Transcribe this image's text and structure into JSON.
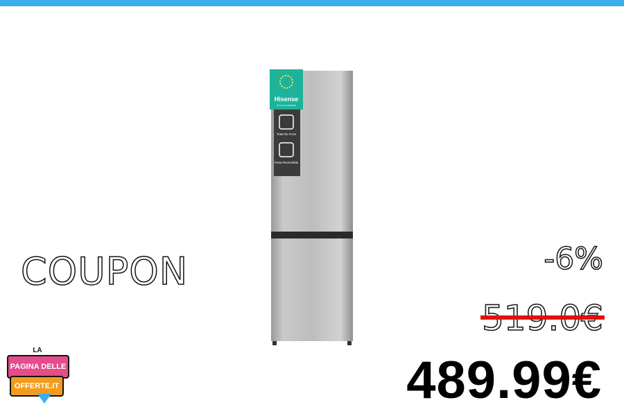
{
  "promo": {
    "coupon_label": "COUPON",
    "discount": "-6%",
    "old_price": "519.0€",
    "new_price": "489.99€"
  },
  "product": {
    "brand_badge": "Hisense",
    "badge_subtitle": "OFFICIAL PARTNER",
    "feature_1": "Total No Frost",
    "feature_2": "Porta Reversibile"
  },
  "logo": {
    "line_top": "LA",
    "line_1": "PAGINA DELLE",
    "line_2": "OFFERTE.IT"
  },
  "colors": {
    "accent": "#3aacf0",
    "strike": "#e01010",
    "badge": "#1db39a",
    "logo_pink": "#e64b8a",
    "logo_orange": "#f39b1f"
  }
}
